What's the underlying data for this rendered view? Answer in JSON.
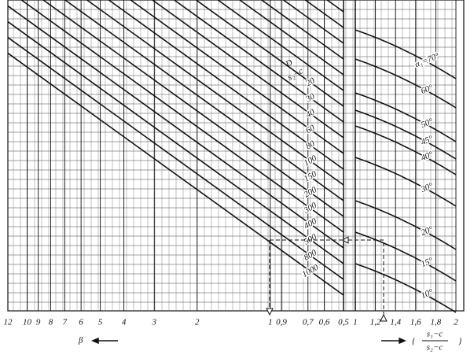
{
  "chart_data": {
    "type": "nomogram",
    "left": {
      "xscale": "log",
      "xlim": [
        12,
        0.5
      ],
      "xticks": [
        12,
        10,
        9,
        8,
        7,
        6,
        5,
        4,
        3,
        2,
        1,
        {
          "value": 0.9,
          "label": "0,9"
        },
        {
          "value": 0.7,
          "label": "0,7"
        },
        {
          "value": 0.6,
          "label": "0,6"
        },
        {
          "value": 0.5,
          "label": "0,5"
        }
      ],
      "xlabel": "β",
      "line_title_num": "D",
      "line_title_den": "s₂−c",
      "lines": [
        "20",
        "30",
        "40",
        "60",
        "80",
        "100",
        "150",
        "200",
        "300",
        "400",
        "500",
        "800",
        "1000"
      ]
    },
    "right": {
      "xlim": [
        1,
        2
      ],
      "xticks": [
        1,
        {
          "value": 1.2,
          "label": "1,2"
        },
        {
          "value": 1.4,
          "label": "1,4"
        },
        {
          "value": 1.6,
          "label": "1,6"
        },
        {
          "value": 1.8,
          "label": "1,8"
        },
        2
      ],
      "xlabel_num": "s₁−c",
      "xlabel_den": "s₂−c",
      "curves": [
        "α₁=70°",
        "60°",
        "50°",
        "45°",
        "40°",
        "30°",
        "20°",
        "15°",
        "10°"
      ]
    },
    "grid": true
  }
}
